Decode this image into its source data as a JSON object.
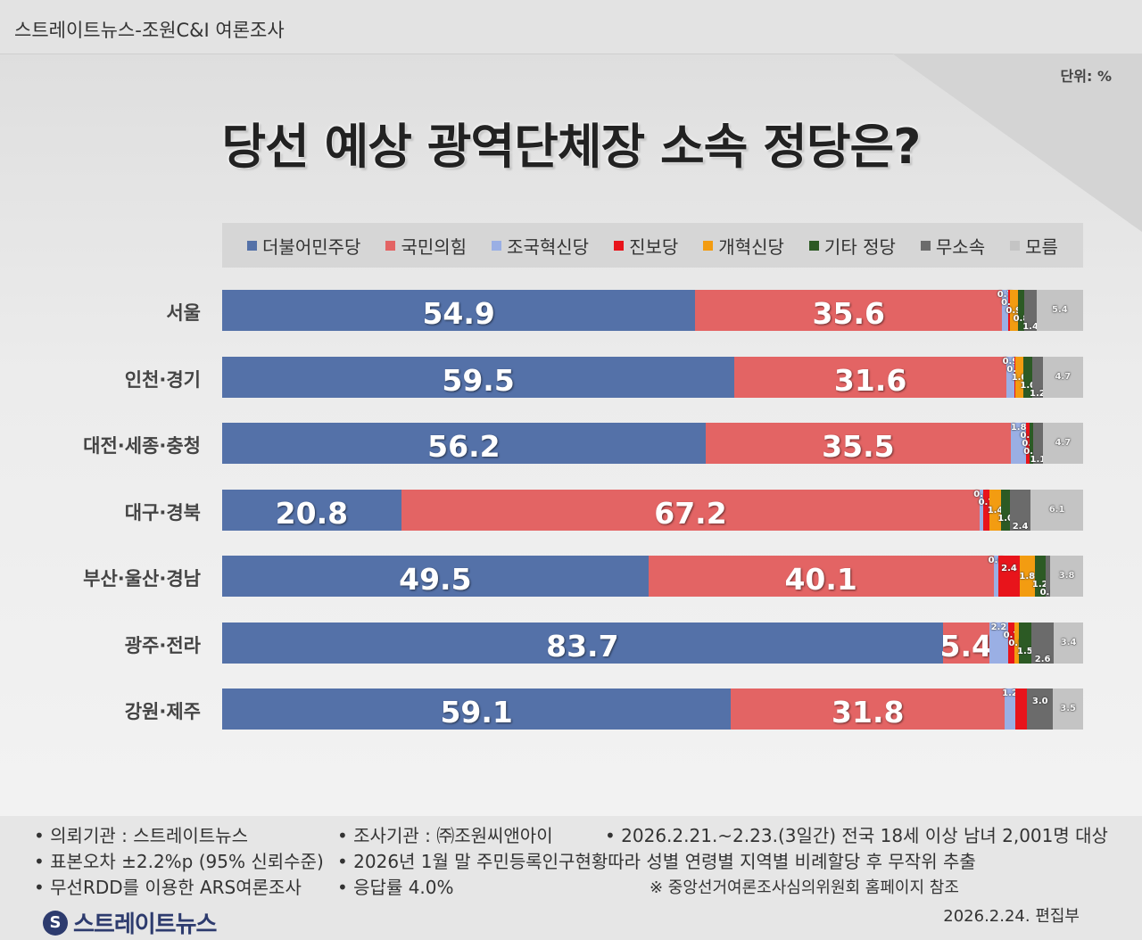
{
  "header": {
    "title": "스트레이트뉴스-조원C&I 여론조사",
    "unit": "단위: %",
    "headline": "당선 예상 광역단체장 소속 정당은?"
  },
  "chart_data": {
    "type": "bar",
    "orientation": "horizontal",
    "stacked": true,
    "title": "당선 예상 광역단체장 소속 정당은?",
    "unit": "%",
    "categories": [
      "서울",
      "인천·경기",
      "대전·세종·충청",
      "대구·경북",
      "부산·울산·경남",
      "광주·전라",
      "강원·제주"
    ],
    "series": [
      {
        "name": "더불어민주당",
        "color": "#5471a8",
        "values": [
          54.9,
          59.5,
          56.2,
          20.8,
          49.5,
          83.7,
          59.1
        ]
      },
      {
        "name": "국민의힘",
        "color": "#e36464",
        "values": [
          35.6,
          31.6,
          35.5,
          67.2,
          40.1,
          5.4,
          31.8
        ]
      },
      {
        "name": "조국혁신당",
        "color": "#9aafe4",
        "values": [
          0.7,
          0.9,
          1.8,
          0.4,
          0.6,
          2.2,
          1.2
        ]
      },
      {
        "name": "진보당",
        "color": "#e8141b",
        "values": [
          0.2,
          0.1,
          0.4,
          0.7,
          2.4,
          0.7,
          1.4
        ]
      },
      {
        "name": "개혁신당",
        "color": "#f39c11",
        "values": [
          0.9,
          1.0,
          0.0,
          1.4,
          1.8,
          0.5,
          0.0
        ]
      },
      {
        "name": "기타 정당",
        "color": "#2c5a24",
        "values": [
          0.8,
          1.0,
          0.4,
          1.0,
          1.2,
          1.5,
          0.0
        ]
      },
      {
        "name": "무소속",
        "color": "#6b6b6b",
        "values": [
          1.4,
          1.2,
          1.1,
          2.4,
          0.6,
          2.6,
          3.0
        ]
      },
      {
        "name": "모름",
        "color": "#c4c4c4",
        "values": [
          5.4,
          4.7,
          4.7,
          6.1,
          3.8,
          3.4,
          3.5
        ]
      }
    ],
    "labels": [
      [
        "54.9",
        "35.6",
        "0.7",
        "0.2",
        "0.9",
        "0.8",
        "1.4",
        "5.4"
      ],
      [
        "59.5",
        "31.6",
        "0.9",
        "0.1",
        "1.0",
        "1.0",
        "1.2",
        "4.7"
      ],
      [
        "56.2",
        "35.5",
        "1.8",
        "0.4",
        "0.0",
        "0.4",
        "1.1",
        "4.7"
      ],
      [
        "20.8",
        "67.2",
        "0.4",
        "0.7",
        "1.4",
        "1.0",
        "2.4",
        "6.1"
      ],
      [
        "49.5",
        "40.1",
        "0.6",
        "2.4",
        "1.8",
        "1.2",
        "0.6",
        "3.8"
      ],
      [
        "83.7",
        "5.4",
        "2.2",
        "0.7",
        "0.5",
        "1.5",
        "2.6",
        "3.4"
      ],
      [
        "59.1",
        "31.8",
        "1.2",
        "",
        "",
        "",
        "3.0",
        "3.5"
      ]
    ],
    "xlim": [
      0,
      100
    ]
  },
  "footer": {
    "client": "• 의뢰기관 : 스트레이트뉴스",
    "agency": "• 조사기관 : ㈜조원씨앤아이",
    "period": "• 2026.2.21.~2.23.(3일간) 전국 18세 이상 남녀 2,001명 대상",
    "error": "• 표본오차 ±2.2%p (95% 신뢰수준)",
    "sampling": "• 2026년 1월 말 주민등록인구현황따라 성별 연령별 지역별 비례할당 후 무작위 추출",
    "method": "• 무선RDD를 이용한 ARS여론조사",
    "response": "• 응답률 4.0%",
    "reference": "※ 중앙선거여론조사심의위원회 홈페이지 참조",
    "logo": "스트레이트뉴스",
    "logo_mark": "S",
    "date": "2026.2.24.  편집부"
  }
}
